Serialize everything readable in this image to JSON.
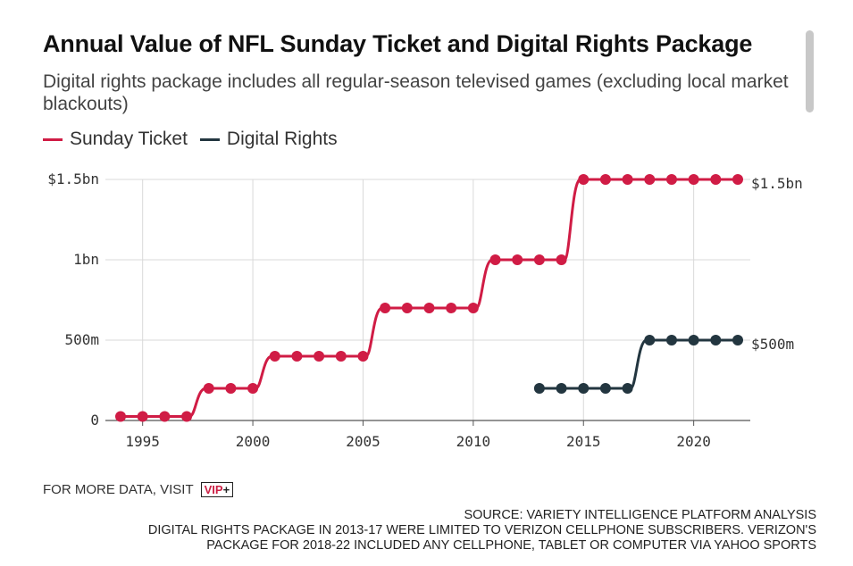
{
  "header": {
    "title": "Annual Value of NFL Sunday Ticket and Digital Rights Package",
    "subtitle": "Digital rights package includes all regular-season televised games (excluding local market blackouts)"
  },
  "footer": {
    "more_prefix": "FOR MORE DATA, VISIT",
    "vip_text": "VIP",
    "vip_plus": "+",
    "source_lines": [
      "SOURCE: VARIETY INTELLIGENCE PLATFORM ANALYSIS",
      "DIGITAL RIGHTS PACKAGE IN 2013-17 WERE LIMITED TO VERIZON CELLPHONE SUBSCRIBERS. VERIZON'S",
      "PACKAGE FOR 2018-22 INCLUDED ANY CELLPHONE, TABLET OR COMPUTER VIA YAHOO SPORTS"
    ]
  },
  "chart_data": {
    "type": "line",
    "title": "Annual Value of NFL Sunday Ticket and Digital Rights Package",
    "subtitle": "Digital rights package includes all regular-season televised games (excluding local market blackouts)",
    "xlim": [
      1994,
      2022
    ],
    "ylim": [
      0,
      1500
    ],
    "x_ticks": [
      1995,
      2000,
      2005,
      2010,
      2015,
      2020
    ],
    "x_tick_labels": [
      "1995",
      "2000",
      "2005",
      "2010",
      "2015",
      "2020"
    ],
    "y_ticks": [
      0,
      500,
      1000,
      1500
    ],
    "y_tick_labels": [
      "0",
      "500m",
      "1bn",
      "$1.5bn"
    ],
    "grid": "both",
    "legend_position": "top-left",
    "series": [
      {
        "name": "Sunday Ticket",
        "color": "#d01c45",
        "end_label": "$1.5bn",
        "points": [
          [
            1994,
            25
          ],
          [
            1995,
            25
          ],
          [
            1996,
            25
          ],
          [
            1997,
            25
          ],
          [
            1998,
            200
          ],
          [
            1999,
            200
          ],
          [
            2000,
            200
          ],
          [
            2001,
            400
          ],
          [
            2002,
            400
          ],
          [
            2003,
            400
          ],
          [
            2004,
            400
          ],
          [
            2005,
            400
          ],
          [
            2006,
            700
          ],
          [
            2007,
            700
          ],
          [
            2008,
            700
          ],
          [
            2009,
            700
          ],
          [
            2010,
            700
          ],
          [
            2011,
            1000
          ],
          [
            2012,
            1000
          ],
          [
            2013,
            1000
          ],
          [
            2014,
            1000
          ],
          [
            2015,
            1500
          ],
          [
            2016,
            1500
          ],
          [
            2017,
            1500
          ],
          [
            2018,
            1500
          ],
          [
            2019,
            1500
          ],
          [
            2020,
            1500
          ],
          [
            2021,
            1500
          ],
          [
            2022,
            1500
          ]
        ]
      },
      {
        "name": "Digital Rights",
        "color": "#233640",
        "end_label": "$500m",
        "points": [
          [
            2013,
            200
          ],
          [
            2014,
            200
          ],
          [
            2015,
            200
          ],
          [
            2016,
            200
          ],
          [
            2017,
            200
          ],
          [
            2018,
            500
          ],
          [
            2019,
            500
          ],
          [
            2020,
            500
          ],
          [
            2021,
            500
          ],
          [
            2022,
            500
          ]
        ]
      }
    ]
  }
}
